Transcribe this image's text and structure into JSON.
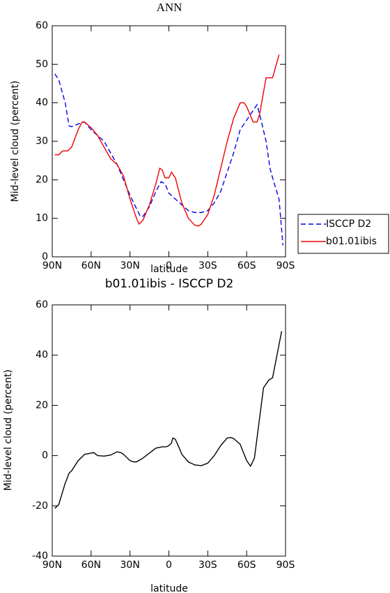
{
  "chart_data": [
    {
      "type": "line",
      "title": "ANN",
      "xlabel": "latitude",
      "ylabel": "Mid-level cloud (percent)",
      "xlim": [
        90,
        -90
      ],
      "xticks": [
        {
          "value": 90,
          "label": "90N"
        },
        {
          "value": 60,
          "label": "60N"
        },
        {
          "value": 30,
          "label": "30N"
        },
        0,
        {
          "value": -30,
          "label": "30S"
        },
        {
          "value": -60,
          "label": "60S"
        },
        {
          "value": -90,
          "label": "90S"
        }
      ],
      "ylim": [
        0,
        60
      ],
      "yticks": [
        0,
        10,
        20,
        30,
        40,
        50,
        60
      ],
      "legend": "right",
      "series": [
        {
          "name": "ISCCP D2",
          "color": "#0000ee",
          "dash": true,
          "x": [
            88,
            85,
            80,
            77,
            75,
            70,
            65,
            60,
            55,
            50,
            45,
            40,
            35,
            30,
            25,
            22,
            20,
            15,
            10,
            6,
            3,
            0,
            -5,
            -10,
            -15,
            -20,
            -25,
            -30,
            -35,
            -40,
            -45,
            -50,
            -55,
            -60,
            -65,
            -68,
            -70,
            -75,
            -78,
            -80,
            -85,
            -88
          ],
          "values": [
            47.5,
            46,
            40,
            34,
            33.8,
            34.5,
            35,
            33,
            31.5,
            30,
            27,
            24,
            20,
            16,
            12.5,
            10.5,
            10.5,
            13,
            17,
            19.5,
            19,
            16.5,
            15,
            13.5,
            12,
            11.5,
            11.5,
            12,
            14,
            17,
            22,
            27,
            33,
            35.5,
            38,
            39.5,
            37,
            30,
            23,
            20.5,
            15,
            3
          ]
        },
        {
          "name": "b01.01ibis",
          "color": "#ee0000",
          "dash": false,
          "x": [
            88,
            85,
            82,
            78,
            75,
            70,
            67,
            65,
            60,
            55,
            50,
            45,
            40,
            35,
            30,
            25,
            23,
            20,
            15,
            10,
            7,
            5,
            3,
            0,
            -2,
            -5,
            -10,
            -15,
            -20,
            -23,
            -25,
            -30,
            -35,
            -40,
            -45,
            -50,
            -55,
            -58,
            -60,
            -65,
            -68,
            -70,
            -75,
            -78,
            -80,
            -85
          ],
          "values": [
            26.5,
            26.5,
            27.5,
            27.5,
            28.5,
            33,
            35,
            35,
            33.5,
            31.5,
            28.5,
            25.5,
            24,
            21,
            15,
            10,
            8.5,
            9.5,
            13.5,
            19,
            23,
            22.5,
            20.5,
            20.5,
            22,
            20.5,
            14,
            10,
            8.2,
            8,
            8.5,
            11,
            16,
            23,
            30,
            36,
            40,
            40,
            39,
            35,
            35,
            37,
            46.5,
            46.5,
            46.5,
            52.5
          ]
        }
      ]
    },
    {
      "type": "line",
      "title": "b01.01ibis - ISCCP D2",
      "xlabel": "latitude",
      "ylabel": "Mid-level cloud (percent)",
      "xlim": [
        90,
        -90
      ],
      "xticks": [
        {
          "value": 90,
          "label": "90N"
        },
        {
          "value": 60,
          "label": "60N"
        },
        {
          "value": 30,
          "label": "30N"
        },
        0,
        {
          "value": -30,
          "label": "30S"
        },
        {
          "value": -60,
          "label": "60S"
        },
        {
          "value": -90,
          "label": "90S"
        }
      ],
      "ylim": [
        -40,
        60
      ],
      "yticks": [
        -40,
        -20,
        0,
        20,
        40,
        60
      ],
      "series": [
        {
          "color": "#000000",
          "dash": false,
          "x": [
            88,
            85,
            80,
            77,
            75,
            70,
            65,
            60,
            58,
            55,
            50,
            45,
            40,
            37,
            35,
            30,
            27,
            25,
            20,
            15,
            10,
            5,
            2,
            0,
            -2,
            -3,
            -5,
            -8,
            -10,
            -15,
            -20,
            -25,
            -30,
            -35,
            -40,
            -45,
            -48,
            -50,
            -55,
            -60,
            -63,
            -66,
            -70,
            -73,
            -77,
            -80,
            -87
          ],
          "values": [
            -21,
            -19.5,
            -11,
            -7,
            -6,
            -2,
            0.5,
            1,
            1.2,
            0,
            -0.2,
            0.2,
            1.5,
            1.2,
            0.5,
            -2,
            -2.5,
            -2.5,
            -1,
            1,
            3,
            3.5,
            3.5,
            4,
            5,
            7,
            6.5,
            3,
            0.5,
            -2.5,
            -3.7,
            -4,
            -3,
            0,
            4,
            7,
            7.2,
            6.8,
            4.5,
            -2,
            -4.2,
            -1,
            15,
            27,
            30,
            31,
            49.5
          ]
        }
      ]
    }
  ]
}
